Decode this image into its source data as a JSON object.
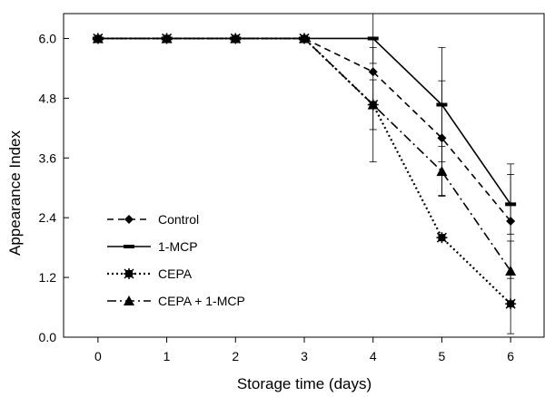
{
  "chart_data": {
    "type": "line",
    "title": "",
    "xlabel": "Storage time (days)",
    "ylabel": "Appearance Index",
    "x": [
      0,
      1,
      2,
      3,
      4,
      5,
      6
    ],
    "xlim": [
      -0.5,
      6.5
    ],
    "ylim": [
      0,
      6.5
    ],
    "x_ticks": [
      "0",
      "1",
      "2",
      "3",
      "4",
      "5",
      "6"
    ],
    "y_ticks": [
      "0.0",
      "1.2",
      "2.4",
      "3.6",
      "4.8",
      "6.0"
    ],
    "grid": false,
    "legend_position": "bottom-left",
    "series": [
      {
        "name": "Control",
        "line_style": "dashed",
        "marker": "diamond",
        "color": "#000000",
        "values": [
          6.0,
          6.0,
          6.0,
          6.0,
          5.33,
          4.0,
          2.33
        ],
        "errors": [
          0,
          0,
          0,
          0,
          0,
          1.15,
          1.15
        ]
      },
      {
        "name": "1-MCP",
        "line_style": "solid",
        "marker": "dash",
        "color": "#000000",
        "values": [
          6.0,
          6.0,
          6.0,
          6.0,
          6.0,
          4.67,
          2.67
        ],
        "errors": [
          0,
          0,
          0,
          0,
          0.5,
          1.15,
          0.6
        ]
      },
      {
        "name": "CEPA",
        "line_style": "dotted",
        "marker": "asterisk",
        "color": "#000000",
        "values": [
          6.0,
          6.0,
          6.0,
          6.0,
          4.67,
          2.0,
          0.67
        ],
        "errors": [
          0,
          0,
          0,
          0,
          0.5,
          0,
          0.6
        ]
      },
      {
        "name": "CEPA + 1-MCP",
        "line_style": "dash-dot",
        "marker": "triangle",
        "color": "#000000",
        "values": [
          6.0,
          6.0,
          6.0,
          6.0,
          4.67,
          3.33,
          1.33
        ],
        "errors": [
          0,
          0,
          0,
          0,
          1.15,
          0.5,
          0.6
        ]
      }
    ]
  }
}
